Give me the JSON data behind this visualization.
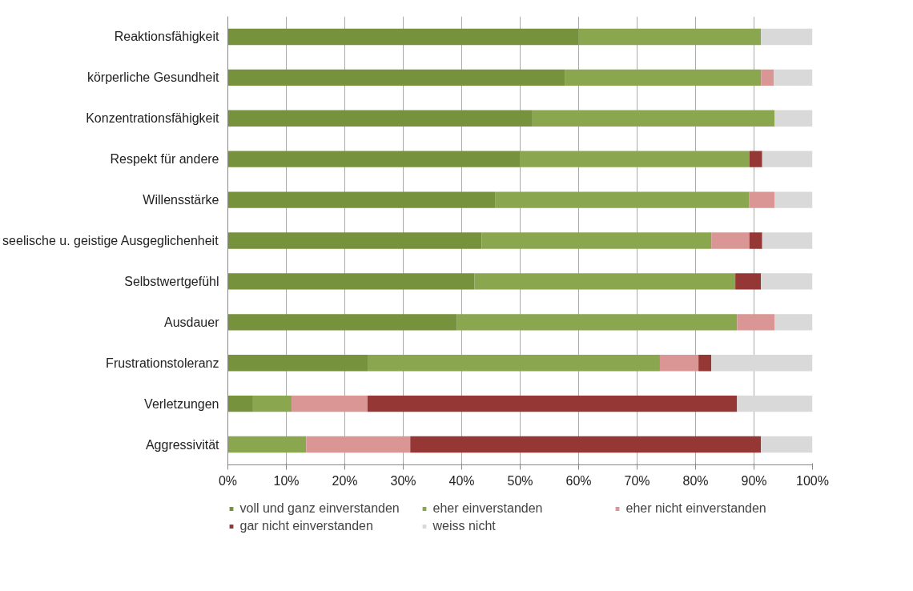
{
  "chart_data": {
    "type": "bar",
    "orientation": "horizontal",
    "stacked": true,
    "categories": [
      "Reaktionsfähigkeit",
      "körperliche Gesundheit",
      "Konzentrationsfähigkeit",
      "Respekt für andere",
      "Willensstärke",
      "seelische u. geistige Ausgeglichenheit",
      "Selbstwertgefühl",
      "Ausdauer",
      "Frustrationstoleranz",
      "Verletzungen",
      "Aggressivität"
    ],
    "series": [
      {
        "name": "voll und ganz einverstanden",
        "color": "#76923c",
        "values": [
          60.0,
          57.7,
          52.1,
          50.0,
          45.7,
          43.4,
          42.2,
          39.2,
          23.9,
          4.3,
          0
        ]
      },
      {
        "name": "eher einverstanden",
        "color": "#8aa74f",
        "values": [
          31.2,
          33.5,
          41.4,
          39.2,
          43.5,
          39.3,
          44.6,
          47.9,
          50.0,
          6.6,
          13.4
        ]
      },
      {
        "name": "eher nicht einverstanden",
        "color": "#d99694",
        "values": [
          0,
          2.2,
          0,
          0,
          4.3,
          6.5,
          0,
          6.4,
          6.6,
          13.0,
          17.8
        ]
      },
      {
        "name": "gar nicht einverstanden",
        "color": "#953735",
        "values": [
          0,
          0,
          0,
          2.2,
          0,
          2.2,
          4.4,
          0,
          2.2,
          63.2,
          60.0
        ]
      },
      {
        "name": "weiss nicht",
        "color": "#d9d9d9",
        "values": [
          8.8,
          6.6,
          6.5,
          8.6,
          6.5,
          8.6,
          8.8,
          6.5,
          17.3,
          12.9,
          8.8
        ]
      }
    ],
    "xlim": [
      0,
      100
    ],
    "xticks": [
      {
        "value": 0,
        "label": "0%"
      },
      {
        "value": 10,
        "label": "10%"
      },
      {
        "value": 20,
        "label": "20%"
      },
      {
        "value": 30,
        "label": "30%"
      },
      {
        "value": 40,
        "label": "40%"
      },
      {
        "value": 50,
        "label": "50%"
      },
      {
        "value": 60,
        "label": "60%"
      },
      {
        "value": 70,
        "label": "70%"
      },
      {
        "value": 80,
        "label": "80%"
      },
      {
        "value": 90,
        "label": "90%"
      },
      {
        "value": 100,
        "label": "100%"
      }
    ],
    "grid": "x",
    "legend": "bottom"
  }
}
